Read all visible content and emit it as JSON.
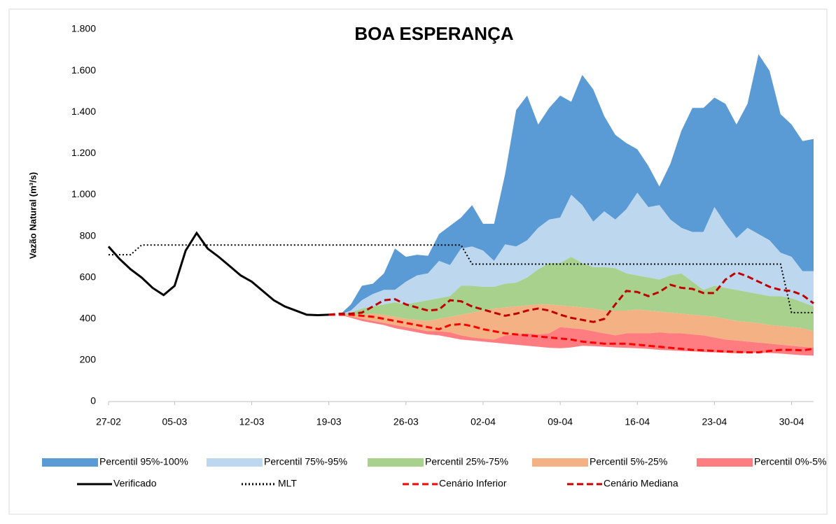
{
  "chart_data": {
    "type": "band-line",
    "title": "BOA ESPERANÇA",
    "y_label": "Vazão Natural (m³/s)",
    "categories": [
      "27-02",
      null,
      null,
      null,
      null,
      null,
      "05-03",
      null,
      null,
      null,
      null,
      null,
      null,
      "12-03",
      null,
      null,
      null,
      null,
      null,
      null,
      "19-03",
      null,
      null,
      null,
      null,
      null,
      null,
      "26-03",
      null,
      null,
      null,
      null,
      null,
      null,
      "02-04",
      null,
      null,
      null,
      null,
      null,
      null,
      "09-04",
      null,
      null,
      null,
      null,
      null,
      null,
      "16-04",
      null,
      null,
      null,
      null,
      null,
      null,
      "23-04",
      null,
      null,
      null,
      null,
      null,
      null,
      "30-04",
      null,
      null
    ],
    "ylim": [
      0,
      1800
    ],
    "yticks": [
      0,
      200,
      400,
      600,
      800,
      {
        "value": 1000,
        "label": "1.000"
      },
      {
        "value": 1200,
        "label": "1.200"
      },
      {
        "value": 1400,
        "label": "1.400"
      },
      {
        "value": 1600,
        "label": "1.600"
      },
      {
        "value": 1800,
        "label": "1.800"
      }
    ],
    "series": [
      {
        "name": "Percentil 95%-100%",
        "style": "band",
        "color": "#5b9bd5",
        "low": [
          null,
          null,
          null,
          null,
          null,
          null,
          null,
          null,
          null,
          null,
          null,
          null,
          null,
          null,
          null,
          null,
          null,
          null,
          null,
          null,
          420,
          420,
          440,
          490,
          520,
          540,
          540,
          580,
          610,
          620,
          680,
          660,
          740,
          750,
          730,
          680,
          760,
          750,
          780,
          840,
          880,
          890,
          1000,
          950,
          870,
          920,
          880,
          930,
          1010,
          940,
          950,
          880,
          840,
          820,
          820,
          940,
          860,
          790,
          840,
          810,
          780,
          720,
          700,
          630,
          630
        ],
        "high": [
          null,
          null,
          null,
          null,
          null,
          null,
          null,
          null,
          null,
          null,
          null,
          null,
          null,
          null,
          null,
          null,
          null,
          null,
          null,
          null,
          420,
          420,
          470,
          560,
          570,
          620,
          740,
          700,
          710,
          705,
          810,
          850,
          890,
          950,
          860,
          860,
          1100,
          1410,
          1480,
          1340,
          1420,
          1480,
          1450,
          1580,
          1510,
          1380,
          1290,
          1250,
          1220,
          1140,
          1040,
          1150,
          1310,
          1420,
          1420,
          1470,
          1440,
          1340,
          1440,
          1680,
          1600,
          1390,
          1340,
          1260,
          1270
        ]
      },
      {
        "name": "Percentil 75%-95%",
        "style": "band",
        "color": "#bdd7ee",
        "low": [
          null,
          null,
          null,
          null,
          null,
          null,
          null,
          null,
          null,
          null,
          null,
          null,
          null,
          null,
          null,
          null,
          null,
          null,
          null,
          null,
          420,
          420,
          430,
          450,
          460,
          470,
          480,
          470,
          480,
          490,
          500,
          510,
          560,
          560,
          555,
          555,
          570,
          575,
          600,
          640,
          670,
          670,
          700,
          670,
          650,
          650,
          645,
          620,
          610,
          600,
          590,
          610,
          620,
          580,
          540,
          560,
          550,
          540,
          530,
          520,
          510,
          510,
          500,
          480,
          460
        ],
        "high": [
          null,
          null,
          null,
          null,
          null,
          null,
          null,
          null,
          null,
          null,
          null,
          null,
          null,
          null,
          null,
          null,
          null,
          null,
          null,
          null,
          420,
          420,
          440,
          490,
          520,
          540,
          540,
          580,
          610,
          620,
          680,
          660,
          740,
          750,
          730,
          680,
          760,
          750,
          780,
          840,
          880,
          890,
          1000,
          950,
          870,
          920,
          880,
          930,
          1010,
          940,
          950,
          880,
          840,
          820,
          820,
          940,
          860,
          790,
          840,
          810,
          780,
          720,
          700,
          630,
          630
        ]
      },
      {
        "name": "Percentil 25%-75%",
        "style": "band",
        "color": "#a9d18e",
        "low": [
          null,
          null,
          null,
          null,
          null,
          null,
          null,
          null,
          null,
          null,
          null,
          null,
          null,
          null,
          null,
          null,
          null,
          null,
          null,
          null,
          420,
          420,
          420,
          420,
          425,
          420,
          410,
          400,
          395,
          390,
          400,
          410,
          420,
          430,
          440,
          450,
          455,
          460,
          465,
          470,
          470,
          465,
          460,
          455,
          450,
          440,
          440,
          440,
          445,
          440,
          435,
          430,
          425,
          420,
          415,
          410,
          400,
          390,
          385,
          380,
          370,
          365,
          360,
          355,
          340
        ],
        "high": [
          null,
          null,
          null,
          null,
          null,
          null,
          null,
          null,
          null,
          null,
          null,
          null,
          null,
          null,
          null,
          null,
          null,
          null,
          null,
          null,
          420,
          420,
          430,
          450,
          460,
          470,
          480,
          470,
          480,
          490,
          500,
          510,
          560,
          560,
          555,
          555,
          570,
          575,
          600,
          640,
          670,
          670,
          700,
          670,
          650,
          650,
          645,
          620,
          610,
          600,
          590,
          610,
          620,
          580,
          540,
          560,
          550,
          540,
          530,
          520,
          510,
          510,
          500,
          480,
          460
        ]
      },
      {
        "name": "Percentil 5%-25%",
        "style": "band",
        "color": "#f4b183",
        "low": [
          null,
          null,
          null,
          null,
          null,
          null,
          null,
          null,
          null,
          null,
          null,
          null,
          null,
          null,
          null,
          null,
          null,
          null,
          null,
          null,
          420,
          420,
          410,
          400,
          390,
          380,
          370,
          360,
          350,
          340,
          340,
          335,
          320,
          310,
          305,
          300,
          320,
          325,
          330,
          325,
          330,
          360,
          355,
          350,
          340,
          330,
          320,
          330,
          330,
          330,
          335,
          330,
          330,
          325,
          320,
          310,
          300,
          295,
          290,
          285,
          280,
          275,
          270,
          265,
          260
        ],
        "high": [
          null,
          null,
          null,
          null,
          null,
          null,
          null,
          null,
          null,
          null,
          null,
          null,
          null,
          null,
          null,
          null,
          null,
          null,
          null,
          null,
          420,
          420,
          420,
          420,
          425,
          420,
          410,
          400,
          395,
          390,
          400,
          410,
          420,
          430,
          440,
          450,
          455,
          460,
          465,
          470,
          470,
          465,
          460,
          455,
          450,
          440,
          440,
          440,
          445,
          440,
          435,
          430,
          425,
          420,
          415,
          410,
          400,
          390,
          385,
          380,
          370,
          365,
          360,
          355,
          340
        ]
      },
      {
        "name": "Percentil 0%-5%",
        "style": "band",
        "color": "#ff7c80",
        "low": [
          null,
          null,
          null,
          null,
          null,
          null,
          null,
          null,
          null,
          null,
          null,
          null,
          null,
          null,
          null,
          null,
          null,
          null,
          null,
          null,
          420,
          420,
          405,
          390,
          380,
          370,
          355,
          345,
          335,
          325,
          320,
          310,
          300,
          295,
          290,
          285,
          280,
          275,
          270,
          265,
          260,
          258,
          262,
          270,
          268,
          265,
          262,
          260,
          258,
          255,
          250,
          248,
          245,
          243,
          240,
          238,
          236,
          234,
          235,
          236,
          235,
          232,
          228,
          224,
          222
        ],
        "high": [
          null,
          null,
          null,
          null,
          null,
          null,
          null,
          null,
          null,
          null,
          null,
          null,
          null,
          null,
          null,
          null,
          null,
          null,
          null,
          null,
          420,
          420,
          410,
          400,
          390,
          380,
          370,
          360,
          350,
          340,
          340,
          335,
          320,
          310,
          305,
          300,
          320,
          325,
          330,
          325,
          330,
          360,
          355,
          350,
          340,
          330,
          320,
          330,
          330,
          330,
          335,
          330,
          330,
          325,
          320,
          310,
          300,
          295,
          290,
          285,
          280,
          275,
          270,
          265,
          260
        ]
      },
      {
        "name": "Verificado",
        "style": "solid",
        "color": "#000000",
        "values": [
          750,
          690,
          640,
          600,
          550,
          515,
          560,
          730,
          815,
          740,
          700,
          655,
          610,
          580,
          535,
          490,
          460,
          440,
          420,
          418,
          420,
          null,
          null,
          null,
          null,
          null,
          null,
          null,
          null,
          null,
          null,
          null,
          null,
          null,
          null,
          null,
          null,
          null,
          null,
          null,
          null,
          null,
          null,
          null,
          null,
          null,
          null,
          null,
          null,
          null,
          null,
          null,
          null,
          null,
          null,
          null,
          null,
          null,
          null,
          null,
          null,
          null,
          null,
          null,
          null
        ]
      },
      {
        "name": "MLT",
        "style": "dotted",
        "color": "#000000",
        "values": [
          710,
          710,
          710,
          757,
          757,
          757,
          757,
          757,
          757,
          757,
          757,
          757,
          757,
          757,
          757,
          757,
          757,
          757,
          757,
          757,
          757,
          757,
          757,
          757,
          757,
          757,
          757,
          757,
          757,
          757,
          757,
          757,
          757,
          665,
          665,
          665,
          665,
          665,
          665,
          665,
          665,
          665,
          665,
          665,
          665,
          665,
          665,
          665,
          665,
          665,
          665,
          665,
          665,
          665,
          665,
          665,
          665,
          665,
          665,
          665,
          665,
          665,
          430,
          430,
          430
        ]
      },
      {
        "name": "Cenário Inferior",
        "style": "dashed",
        "color": "#ff0000",
        "values": [
          null,
          null,
          null,
          null,
          null,
          null,
          null,
          null,
          null,
          null,
          null,
          null,
          null,
          null,
          null,
          null,
          null,
          null,
          null,
          null,
          420,
          420,
          420,
          415,
          410,
          400,
          390,
          380,
          370,
          360,
          350,
          370,
          375,
          365,
          350,
          340,
          330,
          325,
          320,
          315,
          310,
          305,
          300,
          290,
          285,
          280,
          280,
          280,
          275,
          270,
          265,
          260,
          255,
          250,
          248,
          245,
          242,
          240,
          238,
          238,
          245,
          250,
          250,
          248,
          255
        ]
      },
      {
        "name": "Cenário Mediana",
        "style": "dashed",
        "color": "#c00000",
        "values": [
          null,
          null,
          null,
          null,
          null,
          null,
          null,
          null,
          null,
          null,
          null,
          null,
          null,
          null,
          null,
          null,
          null,
          null,
          null,
          null,
          420,
          425,
          425,
          430,
          460,
          490,
          495,
          470,
          455,
          440,
          445,
          490,
          485,
          460,
          445,
          430,
          415,
          425,
          440,
          450,
          440,
          420,
          405,
          395,
          385,
          400,
          470,
          535,
          530,
          510,
          530,
          565,
          550,
          545,
          525,
          525,
          590,
          625,
          605,
          580,
          555,
          540,
          535,
          515,
          475
        ]
      }
    ]
  }
}
